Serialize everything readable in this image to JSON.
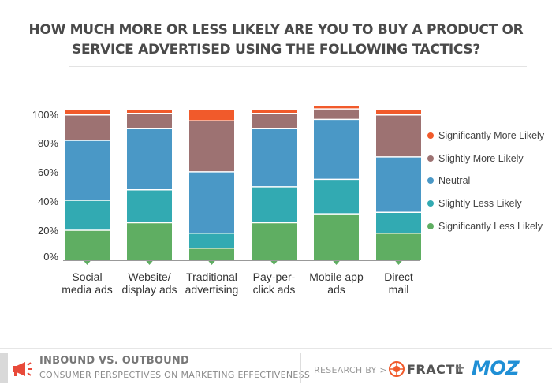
{
  "title_lines": [
    "HOW MUCH MORE OR LESS LIKELY ARE YOU TO BUY A PRODUCT OR",
    "SERVICE  ADVERTISED USING THE FOLLOWING TACTICS?"
  ],
  "chart_data": {
    "type": "bar",
    "stacked": true,
    "title": "HOW MUCH MORE OR LESS LIKELY ARE YOU TO BUY A PRODUCT OR SERVICE  ADVERTISED USING THE FOLLOWING TACTICS?",
    "categories": [
      [
        "Social",
        "media ads"
      ],
      [
        "Website/",
        "display ads"
      ],
      [
        "Traditional",
        "advertising"
      ],
      [
        "Pay-per-",
        "click ads"
      ],
      [
        "Mobile app",
        "ads"
      ],
      [
        "Direct",
        "mail"
      ]
    ],
    "series": [
      {
        "name": "Significantly Less Likely",
        "color": "#5fae62",
        "values": [
          20,
          25,
          8,
          25,
          31,
          18
        ]
      },
      {
        "name": "Slightly Less Likely",
        "color": "#32aab2",
        "values": [
          20,
          22,
          10,
          24,
          23,
          14
        ]
      },
      {
        "name": "Neutral",
        "color": "#4a98c6",
        "values": [
          40,
          41,
          41,
          39,
          40,
          37
        ]
      },
      {
        "name": "Slightly More Likely",
        "color": "#9d7272",
        "values": [
          17,
          10,
          34,
          10,
          7,
          28
        ]
      },
      {
        "name": "Significantly More Likely",
        "color": "#f15a2b",
        "values": [
          3,
          2,
          7,
          2,
          2,
          3
        ]
      }
    ],
    "yticks": [
      "100%",
      "80%",
      "60%",
      "40%",
      "20%",
      "0%"
    ],
    "ylim": [
      0,
      100
    ],
    "legend_position": "right",
    "legend_order": [
      "Significantly More Likely",
      "Slightly More Likely",
      "Neutral",
      "Slightly Less Likely",
      "Significantly Less Likely"
    ]
  },
  "footer": {
    "title": "INBOUND VS. OUTBOUND",
    "subtitle": "CONSUMER PERSPECTIVES ON MARKETING EFFECTIVENESS",
    "research_by": "RESEARCH BY  >",
    "logo_fractl": "FRACTL",
    "plus": "+",
    "logo_moz": "MOZ"
  }
}
